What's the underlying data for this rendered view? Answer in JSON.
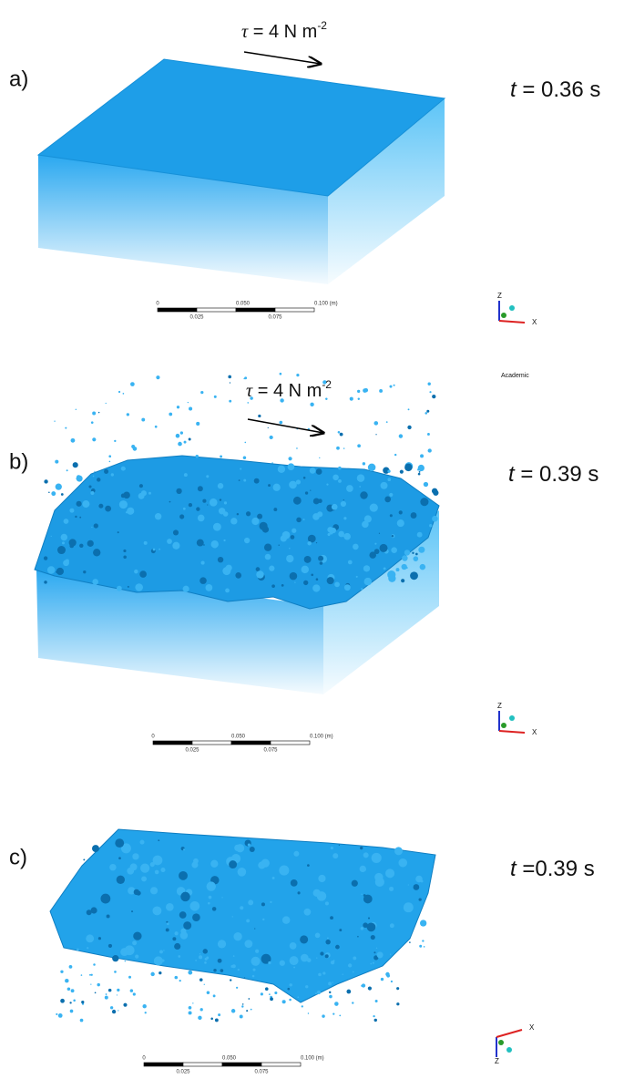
{
  "panels": [
    {
      "label": "a)",
      "stress": {
        "symbol": "τ",
        "text": "= 4 N m",
        "exponent": "-2"
      },
      "time": {
        "var": "t",
        "text": "= 0.36 s"
      },
      "scale": {
        "top": [
          "0",
          "0.050",
          "0.100 (m)"
        ],
        "bottom": [
          "0.025",
          "0.075"
        ]
      },
      "axes": [
        "Z",
        "X"
      ],
      "watermark": "Academic"
    },
    {
      "label": "b)",
      "stress": {
        "symbol": "τ",
        "text": "= 4 N m",
        "exponent": "-2"
      },
      "time": {
        "var": "t",
        "text": "= 0.39 s"
      },
      "scale": {
        "top": [
          "0",
          "0.050",
          "0.100 (m)"
        ],
        "bottom": [
          "0.025",
          "0.075"
        ]
      },
      "axes": [
        "Z",
        "X"
      ]
    },
    {
      "label": "c)",
      "time": {
        "var": "t",
        "text": "=0.39 s"
      },
      "scale": {
        "top": [
          "0",
          "0.050",
          "0.100 (m)"
        ],
        "bottom": [
          "0.025",
          "0.075"
        ]
      },
      "axes": [
        "Z",
        "X"
      ]
    }
  ]
}
